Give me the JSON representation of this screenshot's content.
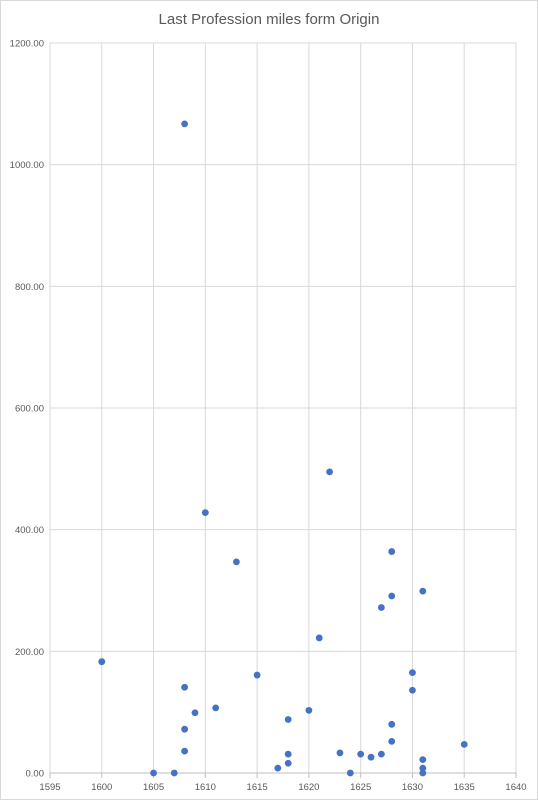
{
  "chart_data": {
    "type": "scatter",
    "title": "Last Profession miles form Origin",
    "xlabel": "",
    "ylabel": "",
    "xlim": [
      1595,
      1640
    ],
    "ylim": [
      0,
      1200
    ],
    "x_ticks": [
      "1595",
      "1600",
      "1605",
      "1610",
      "1615",
      "1620",
      "1625",
      "1630",
      "1635",
      "1640"
    ],
    "y_ticks": [
      "0.00",
      "200.00",
      "400.00",
      "600.00",
      "800.00",
      "1000.00",
      "1200.00"
    ],
    "grid": true,
    "legend": "none",
    "marker_color": "#4472c4",
    "grid_color": "#d9d9d9",
    "series": [
      {
        "points": [
          {
            "x": 1600,
            "y": 183
          },
          {
            "x": 1605,
            "y": 0
          },
          {
            "x": 1607,
            "y": 0
          },
          {
            "x": 1608,
            "y": 1067
          },
          {
            "x": 1608,
            "y": 141
          },
          {
            "x": 1608,
            "y": 72
          },
          {
            "x": 1608,
            "y": 36
          },
          {
            "x": 1609,
            "y": 99
          },
          {
            "x": 1610,
            "y": 428
          },
          {
            "x": 1611,
            "y": 107
          },
          {
            "x": 1613,
            "y": 347
          },
          {
            "x": 1615,
            "y": 161
          },
          {
            "x": 1617,
            "y": 8
          },
          {
            "x": 1618,
            "y": 88
          },
          {
            "x": 1618,
            "y": 31
          },
          {
            "x": 1618,
            "y": 16
          },
          {
            "x": 1620,
            "y": 103
          },
          {
            "x": 1621,
            "y": 222
          },
          {
            "x": 1622,
            "y": 495
          },
          {
            "x": 1623,
            "y": 33
          },
          {
            "x": 1624,
            "y": 0
          },
          {
            "x": 1625,
            "y": 31
          },
          {
            "x": 1626,
            "y": 26
          },
          {
            "x": 1627,
            "y": 272
          },
          {
            "x": 1627,
            "y": 31
          },
          {
            "x": 1628,
            "y": 364
          },
          {
            "x": 1628,
            "y": 291
          },
          {
            "x": 1628,
            "y": 80
          },
          {
            "x": 1628,
            "y": 52
          },
          {
            "x": 1630,
            "y": 165
          },
          {
            "x": 1630,
            "y": 136
          },
          {
            "x": 1631,
            "y": 299
          },
          {
            "x": 1631,
            "y": 22
          },
          {
            "x": 1631,
            "y": 8
          },
          {
            "x": 1631,
            "y": 0
          },
          {
            "x": 1635,
            "y": 47
          }
        ]
      }
    ]
  }
}
